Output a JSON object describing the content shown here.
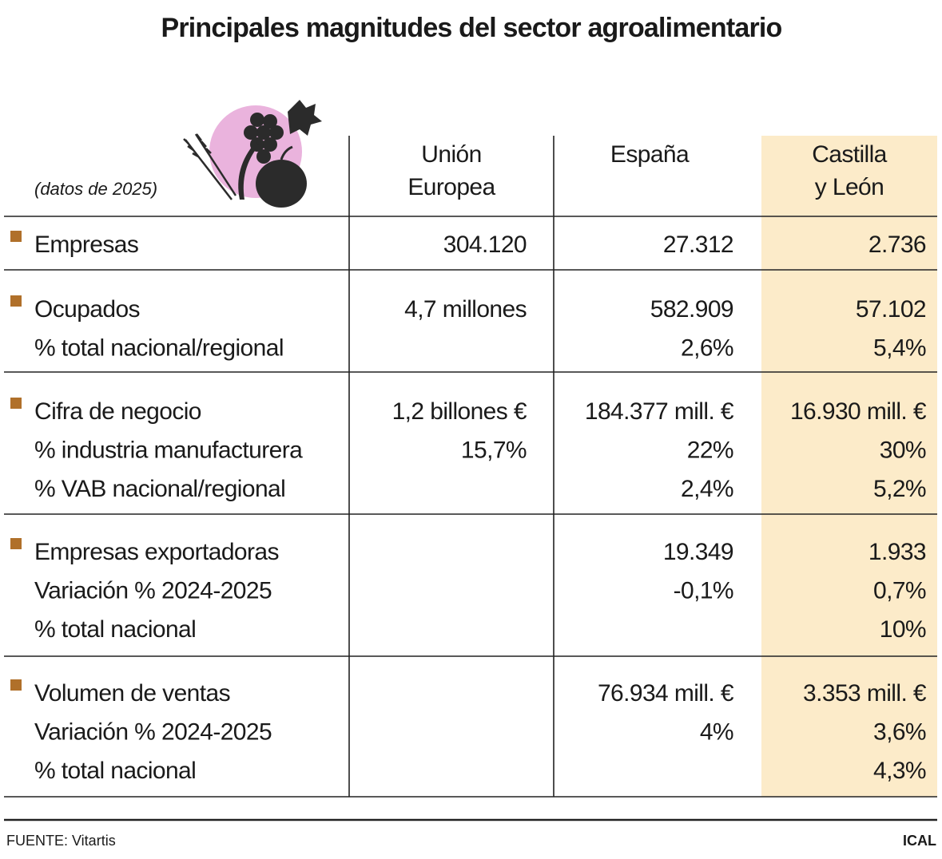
{
  "header": {
    "title": "Principales magnitudes del sector agroalimentario",
    "note": "(datos de 2025)"
  },
  "table": {
    "columns": [
      [
        "Unión",
        "Europea"
      ],
      [
        "España"
      ],
      [
        "Castilla",
        "y León"
      ]
    ],
    "groups": [
      [
        [
          "Empresas",
          "304.120",
          "27.312",
          "2.736"
        ]
      ],
      [
        [
          "Ocupados",
          "4,7 millones",
          "582.909",
          "57.102"
        ],
        [
          "% total nacional/regional",
          null,
          "2,6%",
          "5,4%"
        ]
      ],
      [
        [
          "Cifra de negocio",
          "1,2 billones €",
          "184.377 mill. €",
          "16.930 mill. €"
        ],
        [
          "% industria manufacturera",
          "15,7%",
          "22%",
          "30%"
        ],
        [
          "% VAB nacional/regional",
          null,
          "2,4%",
          "5,2%"
        ]
      ],
      [
        [
          "Empresas exportadoras",
          null,
          "19.349",
          "1.933"
        ],
        [
          "Variación % 2024-2025",
          null,
          "-0,1%",
          "0,7%"
        ],
        [
          "% total nacional",
          null,
          null,
          "10%"
        ]
      ],
      [
        [
          "Volumen de ventas",
          null,
          "76.934 mill. €",
          "3.353 mill. €"
        ],
        [
          "Variación % 2024-2025",
          null,
          "4%",
          "3,6%"
        ],
        [
          "% total nacional",
          null,
          null,
          "4,3%"
        ]
      ]
    ]
  },
  "footer": {
    "source": "FUENTE: Vitartis",
    "agency": "ICAL"
  }
}
